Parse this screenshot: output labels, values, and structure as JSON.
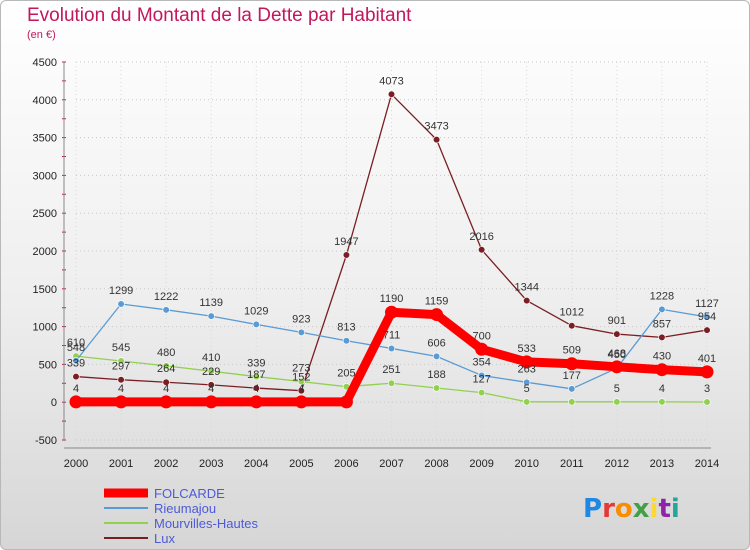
{
  "chart_data": {
    "type": "line",
    "title": "Evolution du Montant de la Dette par Habitant",
    "subtitle": "(en €)",
    "xlabel": "",
    "ylabel": "",
    "ylim": [
      -500,
      4500
    ],
    "yticks": [
      -500,
      0,
      500,
      1000,
      1500,
      2000,
      2500,
      3000,
      3500,
      4000,
      4500
    ],
    "categories": [
      "2000",
      "2001",
      "2002",
      "2003",
      "2004",
      "2005",
      "2006",
      "2007",
      "2008",
      "2009",
      "2010",
      "2011",
      "2012",
      "2013",
      "2014"
    ],
    "series": [
      {
        "name": "FOLCARDE",
        "color": "#ff0000",
        "values": [
          4,
          4,
          4,
          4,
          4,
          4,
          4,
          1190,
          1159,
          700,
          533,
          509,
          468,
          430,
          401
        ],
        "labels": [
          "4",
          "4",
          "4",
          "4",
          "4",
          "4",
          "",
          "1190",
          "1159",
          "700",
          "533",
          "509",
          "468",
          "430",
          "401"
        ]
      },
      {
        "name": "Rieumajou",
        "color": "#5b9bd5",
        "values": [
          548,
          1299,
          1222,
          1139,
          1029,
          923,
          813,
          711,
          606,
          354,
          263,
          177,
          450,
          1228,
          1127
        ],
        "labels": [
          "548",
          "1299",
          "1222",
          "1139",
          "1029",
          "923",
          "813",
          "711",
          "606",
          "354",
          "263",
          "177",
          "450",
          "1228",
          "1127"
        ]
      },
      {
        "name": "Mourvilles-Hautes",
        "color": "#92d050",
        "values": [
          610,
          545,
          480,
          410,
          339,
          273,
          205,
          251,
          188,
          127,
          5,
          5,
          5,
          4,
          3
        ],
        "labels": [
          "610",
          "545",
          "480",
          "410",
          "339",
          "273",
          "205",
          "251",
          "188",
          "127",
          "5",
          "",
          "5",
          "4",
          "3"
        ]
      },
      {
        "name": "Lux",
        "color": "#7b1e24",
        "values": [
          339,
          297,
          264,
          229,
          187,
          152,
          1947,
          4073,
          3473,
          2016,
          1344,
          1012,
          901,
          857,
          954
        ],
        "labels": [
          "339",
          "297",
          "264",
          "229",
          "187",
          "152",
          "1947",
          "4073",
          "3473",
          "2016",
          "1344",
          "1012",
          "901",
          "857",
          "954"
        ]
      }
    ]
  },
  "brand": {
    "letters": [
      "P",
      "r",
      "o",
      "x",
      "i",
      "t",
      "i"
    ],
    "colors": [
      "#1e88e5",
      "#e53935",
      "#fb8c00",
      "#43a047",
      "#fdd835",
      "#8e24aa",
      "#26a69a"
    ]
  }
}
